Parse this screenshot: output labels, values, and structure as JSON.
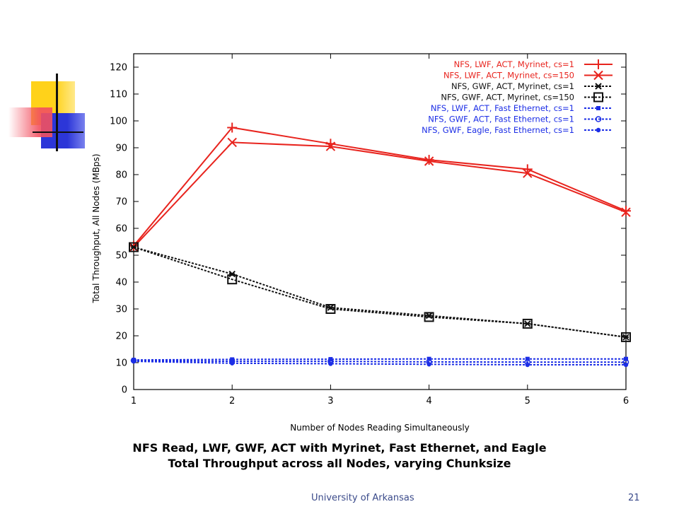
{
  "caption": {
    "line1": "NFS Read, LWF, GWF, ACT with Myrinet, Fast Ethernet, and Eagle",
    "line2": "Total Throughput across all Nodes, varying Chunksize"
  },
  "footer": {
    "org": "University of Arkansas",
    "page": "21"
  },
  "colors": {
    "red": "#e8241e",
    "black": "#111111",
    "blue": "#1c2ee6",
    "deco_yellow": "#ffd21a",
    "deco_blue": "#2c36d8",
    "deco_red": "#f25060"
  },
  "chart_data": {
    "type": "line",
    "xlabel": "Number of Nodes Reading Simultaneously",
    "ylabel": "Total Throughput, All Nodes (MBps)",
    "xlim": [
      1,
      6
    ],
    "ylim": [
      0,
      125
    ],
    "xticks": [
      "1",
      "2",
      "3",
      "4",
      "5",
      "6"
    ],
    "yticks": [
      "0",
      "10",
      "20",
      "30",
      "40",
      "50",
      "60",
      "70",
      "80",
      "90",
      "100",
      "110",
      "120"
    ],
    "legend_position": "top-right",
    "grid": false,
    "x": [
      1,
      2,
      3,
      4,
      5,
      6
    ],
    "series": [
      {
        "name": "NFS, LWF, ACT, Myrinet, cs=1",
        "color": "#e8241e",
        "dash": "solid",
        "marker": "plus",
        "values": [
          53.5,
          97.5,
          91.5,
          85.5,
          82,
          66.5
        ]
      },
      {
        "name": "NFS, LWF, ACT, Myrinet, cs=150",
        "color": "#e8241e",
        "dash": "solid",
        "marker": "cross",
        "values": [
          53,
          92,
          90.5,
          85,
          80.5,
          66
        ]
      },
      {
        "name": "NFS, GWF, ACT, Myrinet, cs=1",
        "color": "#111111",
        "dash": "dotted",
        "marker": "star",
        "values": [
          53,
          43,
          30.5,
          27.5,
          24.5,
          19.5
        ]
      },
      {
        "name": "NFS, GWF, ACT, Myrinet, cs=150",
        "color": "#111111",
        "dash": "dotted",
        "marker": "square",
        "values": [
          53,
          41,
          30,
          27,
          24.5,
          19.5
        ]
      },
      {
        "name": "NFS, LWF, ACT, Fast Ethernet, cs=1",
        "color": "#1c2ee6",
        "dash": "dotted",
        "marker": "filled-square",
        "values": [
          11,
          11.2,
          11.3,
          11.4,
          11.4,
          11.4
        ]
      },
      {
        "name": "NFS, GWF, ACT, Fast Ethernet, cs=1",
        "color": "#1c2ee6",
        "dash": "dotted",
        "marker": "open-circle",
        "values": [
          10.8,
          10.5,
          10.5,
          10.3,
          10.2,
          10.2
        ]
      },
      {
        "name": "NFS, GWF, Eagle, Fast Ethernet, cs=1",
        "color": "#1c2ee6",
        "dash": "dotted",
        "marker": "filled-circle",
        "values": [
          10.5,
          9.8,
          9.6,
          9.4,
          9.2,
          9.2
        ]
      }
    ]
  }
}
